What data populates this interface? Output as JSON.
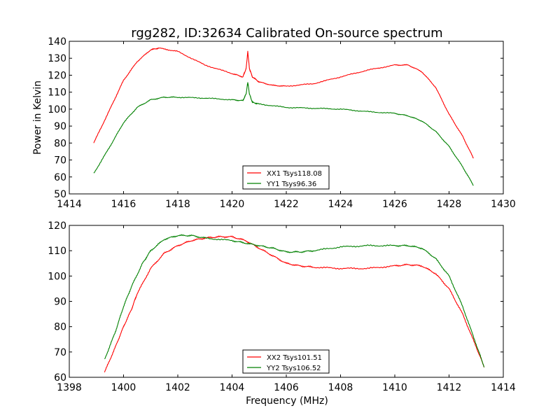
{
  "chart_data": [
    {
      "type": "line",
      "title": "rgg282, ID:32634 Calibrated On-source spectrum",
      "xlabel": "",
      "ylabel": "Power in Kelvin",
      "xlim": [
        1414,
        1430
      ],
      "ylim": [
        50,
        140
      ],
      "xticks": [
        "1414",
        "1416",
        "1418",
        "1420",
        "1422",
        "1424",
        "1426",
        "1428",
        "1430"
      ],
      "yticks": [
        "50",
        "60",
        "70",
        "80",
        "90",
        "100",
        "110",
        "120",
        "130",
        "140"
      ],
      "legend_position": "bottom-center",
      "series": [
        {
          "name": "XX1 Tsys118.08",
          "color": "#ff0000",
          "points": [
            [
              1414.9,
              80
            ],
            [
              1415.5,
              100
            ],
            [
              1416,
              117
            ],
            [
              1416.5,
              128
            ],
            [
              1417,
              135
            ],
            [
              1417.3,
              136
            ],
            [
              1418,
              134
            ],
            [
              1419,
              126
            ],
            [
              1420,
              121
            ],
            [
              1420.4,
              119
            ],
            [
              1420.52,
              124
            ],
            [
              1420.58,
              134
            ],
            [
              1420.64,
              124
            ],
            [
              1420.75,
              119
            ],
            [
              1421,
              116
            ],
            [
              1421.5,
              114
            ],
            [
              1422,
              113.5
            ],
            [
              1423,
              115
            ],
            [
              1424,
              119
            ],
            [
              1425,
              123
            ],
            [
              1426,
              126
            ],
            [
              1426.5,
              126
            ],
            [
              1427,
              122
            ],
            [
              1427.5,
              113
            ],
            [
              1428,
              97
            ],
            [
              1428.5,
              84
            ],
            [
              1428.9,
              71
            ]
          ]
        },
        {
          "name": "YY1 Tsys96.36",
          "color": "#008000",
          "points": [
            [
              1414.9,
              62
            ],
            [
              1415.5,
              78
            ],
            [
              1416,
              92
            ],
            [
              1416.5,
              101
            ],
            [
              1417,
              105.5
            ],
            [
              1417.5,
              107
            ],
            [
              1418,
              107
            ],
            [
              1419,
              106.5
            ],
            [
              1420,
              105.5
            ],
            [
              1420.4,
              105
            ],
            [
              1420.52,
              109
            ],
            [
              1420.58,
              116
            ],
            [
              1420.64,
              109
            ],
            [
              1420.75,
              104
            ],
            [
              1421,
              103
            ],
            [
              1422,
              101
            ],
            [
              1423,
              100.5
            ],
            [
              1424,
              100
            ],
            [
              1425,
              98.5
            ],
            [
              1426,
              97.5
            ],
            [
              1426.5,
              96
            ],
            [
              1427,
              93
            ],
            [
              1427.5,
              87
            ],
            [
              1428,
              78
            ],
            [
              1428.5,
              66
            ],
            [
              1428.9,
              55
            ]
          ]
        }
      ]
    },
    {
      "type": "line",
      "title": "",
      "xlabel": "Frequency (MHz)",
      "ylabel": "",
      "xlim": [
        1398,
        1414
      ],
      "ylim": [
        60,
        120
      ],
      "xticks": [
        "1398",
        "1400",
        "1402",
        "1404",
        "1406",
        "1408",
        "1410",
        "1412",
        "1414"
      ],
      "yticks": [
        "60",
        "70",
        "80",
        "90",
        "100",
        "110",
        "120"
      ],
      "legend_position": "bottom-center",
      "series": [
        {
          "name": "XX2 Tsys101.51",
          "color": "#ff0000",
          "points": [
            [
              1399.3,
              62
            ],
            [
              1399.7,
              72
            ],
            [
              1400,
              80
            ],
            [
              1400.3,
              87
            ],
            [
              1400.5,
              93
            ],
            [
              1401,
              103
            ],
            [
              1401.5,
              109
            ],
            [
              1402,
              112
            ],
            [
              1402.5,
              114
            ],
            [
              1403,
              115
            ],
            [
              1403.5,
              115.5
            ],
            [
              1404,
              115.5
            ],
            [
              1404.5,
              114
            ],
            [
              1405,
              111
            ],
            [
              1405.5,
              108
            ],
            [
              1406,
              105
            ],
            [
              1406.5,
              104
            ],
            [
              1407,
              103.5
            ],
            [
              1408,
              103
            ],
            [
              1409,
              103
            ],
            [
              1410,
              104
            ],
            [
              1410.5,
              104.5
            ],
            [
              1411,
              104
            ],
            [
              1411.5,
              101
            ],
            [
              1412,
              95
            ],
            [
              1412.5,
              85
            ],
            [
              1413,
              72
            ],
            [
              1413.3,
              64
            ]
          ]
        },
        {
          "name": "YY2 Tsys106.52",
          "color": "#008000",
          "points": [
            [
              1399.3,
              67
            ],
            [
              1399.7,
              78
            ],
            [
              1400,
              88
            ],
            [
              1400.3,
              96
            ],
            [
              1400.7,
              105
            ],
            [
              1401,
              110
            ],
            [
              1401.5,
              114.5
            ],
            [
              1402,
              116
            ],
            [
              1402.5,
              116
            ],
            [
              1403,
              115
            ],
            [
              1404,
              114
            ],
            [
              1404.5,
              113
            ],
            [
              1405,
              112
            ],
            [
              1405.5,
              111
            ],
            [
              1406,
              109.5
            ],
            [
              1406.5,
              109.5
            ],
            [
              1407,
              110
            ],
            [
              1408,
              111.5
            ],
            [
              1409,
              112
            ],
            [
              1410,
              112
            ],
            [
              1410.5,
              112
            ],
            [
              1411,
              111
            ],
            [
              1411.5,
              107
            ],
            [
              1412,
              100
            ],
            [
              1412.5,
              88
            ],
            [
              1413,
              73
            ],
            [
              1413.3,
              64
            ]
          ]
        }
      ]
    }
  ]
}
